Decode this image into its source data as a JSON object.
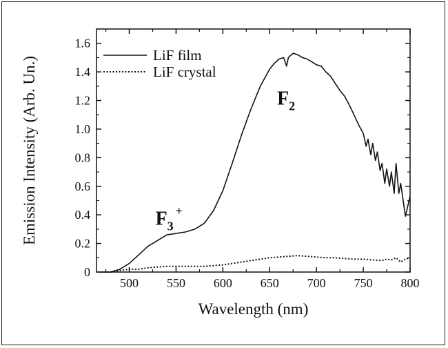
{
  "chart_data": {
    "type": "line",
    "xlabel": "Wavelength (nm)",
    "ylabel": "Emission Intensity (Arb. Un.)",
    "xlim": [
      465,
      800
    ],
    "ylim": [
      0,
      1.7
    ],
    "x_ticks": [
      500,
      550,
      600,
      650,
      700,
      750,
      800
    ],
    "x_tick_labels": [
      "500",
      "550",
      "600",
      "650",
      "700",
      "750",
      "800"
    ],
    "y_ticks": [
      0,
      0.2,
      0.4,
      0.6,
      0.8,
      1.0,
      1.2,
      1.4,
      1.6
    ],
    "y_tick_labels": [
      "0",
      "0.2",
      "0.4",
      "0.6",
      "0.8",
      "1.0",
      "1.2",
      "1.4",
      "1.6"
    ],
    "grid": false,
    "legend_position": "top-left",
    "series": [
      {
        "name": "LiF film",
        "style": "solid",
        "color": "#111111",
        "x": [
          470,
          480,
          490,
          500,
          510,
          520,
          530,
          540,
          550,
          560,
          570,
          580,
          590,
          600,
          610,
          620,
          630,
          640,
          650,
          655,
          660,
          665,
          668,
          670,
          675,
          680,
          685,
          690,
          695,
          700,
          705,
          710,
          715,
          720,
          725,
          730,
          735,
          740,
          745,
          750,
          753,
          755,
          758,
          760,
          763,
          765,
          768,
          770,
          773,
          775,
          778,
          780,
          783,
          785,
          788,
          790,
          795,
          800
        ],
        "y": [
          0.0,
          0.0,
          0.02,
          0.06,
          0.12,
          0.18,
          0.22,
          0.26,
          0.27,
          0.28,
          0.3,
          0.34,
          0.43,
          0.57,
          0.76,
          0.96,
          1.14,
          1.3,
          1.42,
          1.46,
          1.49,
          1.5,
          1.44,
          1.5,
          1.53,
          1.52,
          1.5,
          1.49,
          1.47,
          1.45,
          1.44,
          1.4,
          1.37,
          1.32,
          1.27,
          1.23,
          1.17,
          1.1,
          1.03,
          0.97,
          0.88,
          0.93,
          0.82,
          0.9,
          0.78,
          0.84,
          0.71,
          0.76,
          0.62,
          0.72,
          0.6,
          0.7,
          0.55,
          0.76,
          0.55,
          0.62,
          0.39,
          0.53
        ]
      },
      {
        "name": "LiF crystal",
        "style": "dotted",
        "color": "#111111",
        "x": [
          470,
          480,
          490,
          500,
          510,
          520,
          530,
          540,
          550,
          560,
          570,
          580,
          590,
          600,
          610,
          620,
          630,
          640,
          650,
          660,
          670,
          680,
          690,
          700,
          710,
          720,
          730,
          740,
          750,
          760,
          770,
          775,
          780,
          785,
          790,
          795,
          800
        ],
        "y": [
          0.0,
          0.0,
          0.01,
          0.02,
          0.02,
          0.03,
          0.035,
          0.04,
          0.04,
          0.04,
          0.04,
          0.04,
          0.045,
          0.05,
          0.06,
          0.07,
          0.08,
          0.09,
          0.1,
          0.105,
          0.11,
          0.115,
          0.11,
          0.105,
          0.1,
          0.1,
          0.095,
          0.09,
          0.09,
          0.085,
          0.08,
          0.09,
          0.085,
          0.1,
          0.07,
          0.09,
          0.1
        ]
      }
    ],
    "annotations": [
      {
        "main": "F",
        "sub": "3",
        "sup": "+",
        "x": 528,
        "y": 0.33
      },
      {
        "main": "F",
        "sub": "2",
        "sup": "",
        "x": 658,
        "y": 1.17
      }
    ]
  }
}
